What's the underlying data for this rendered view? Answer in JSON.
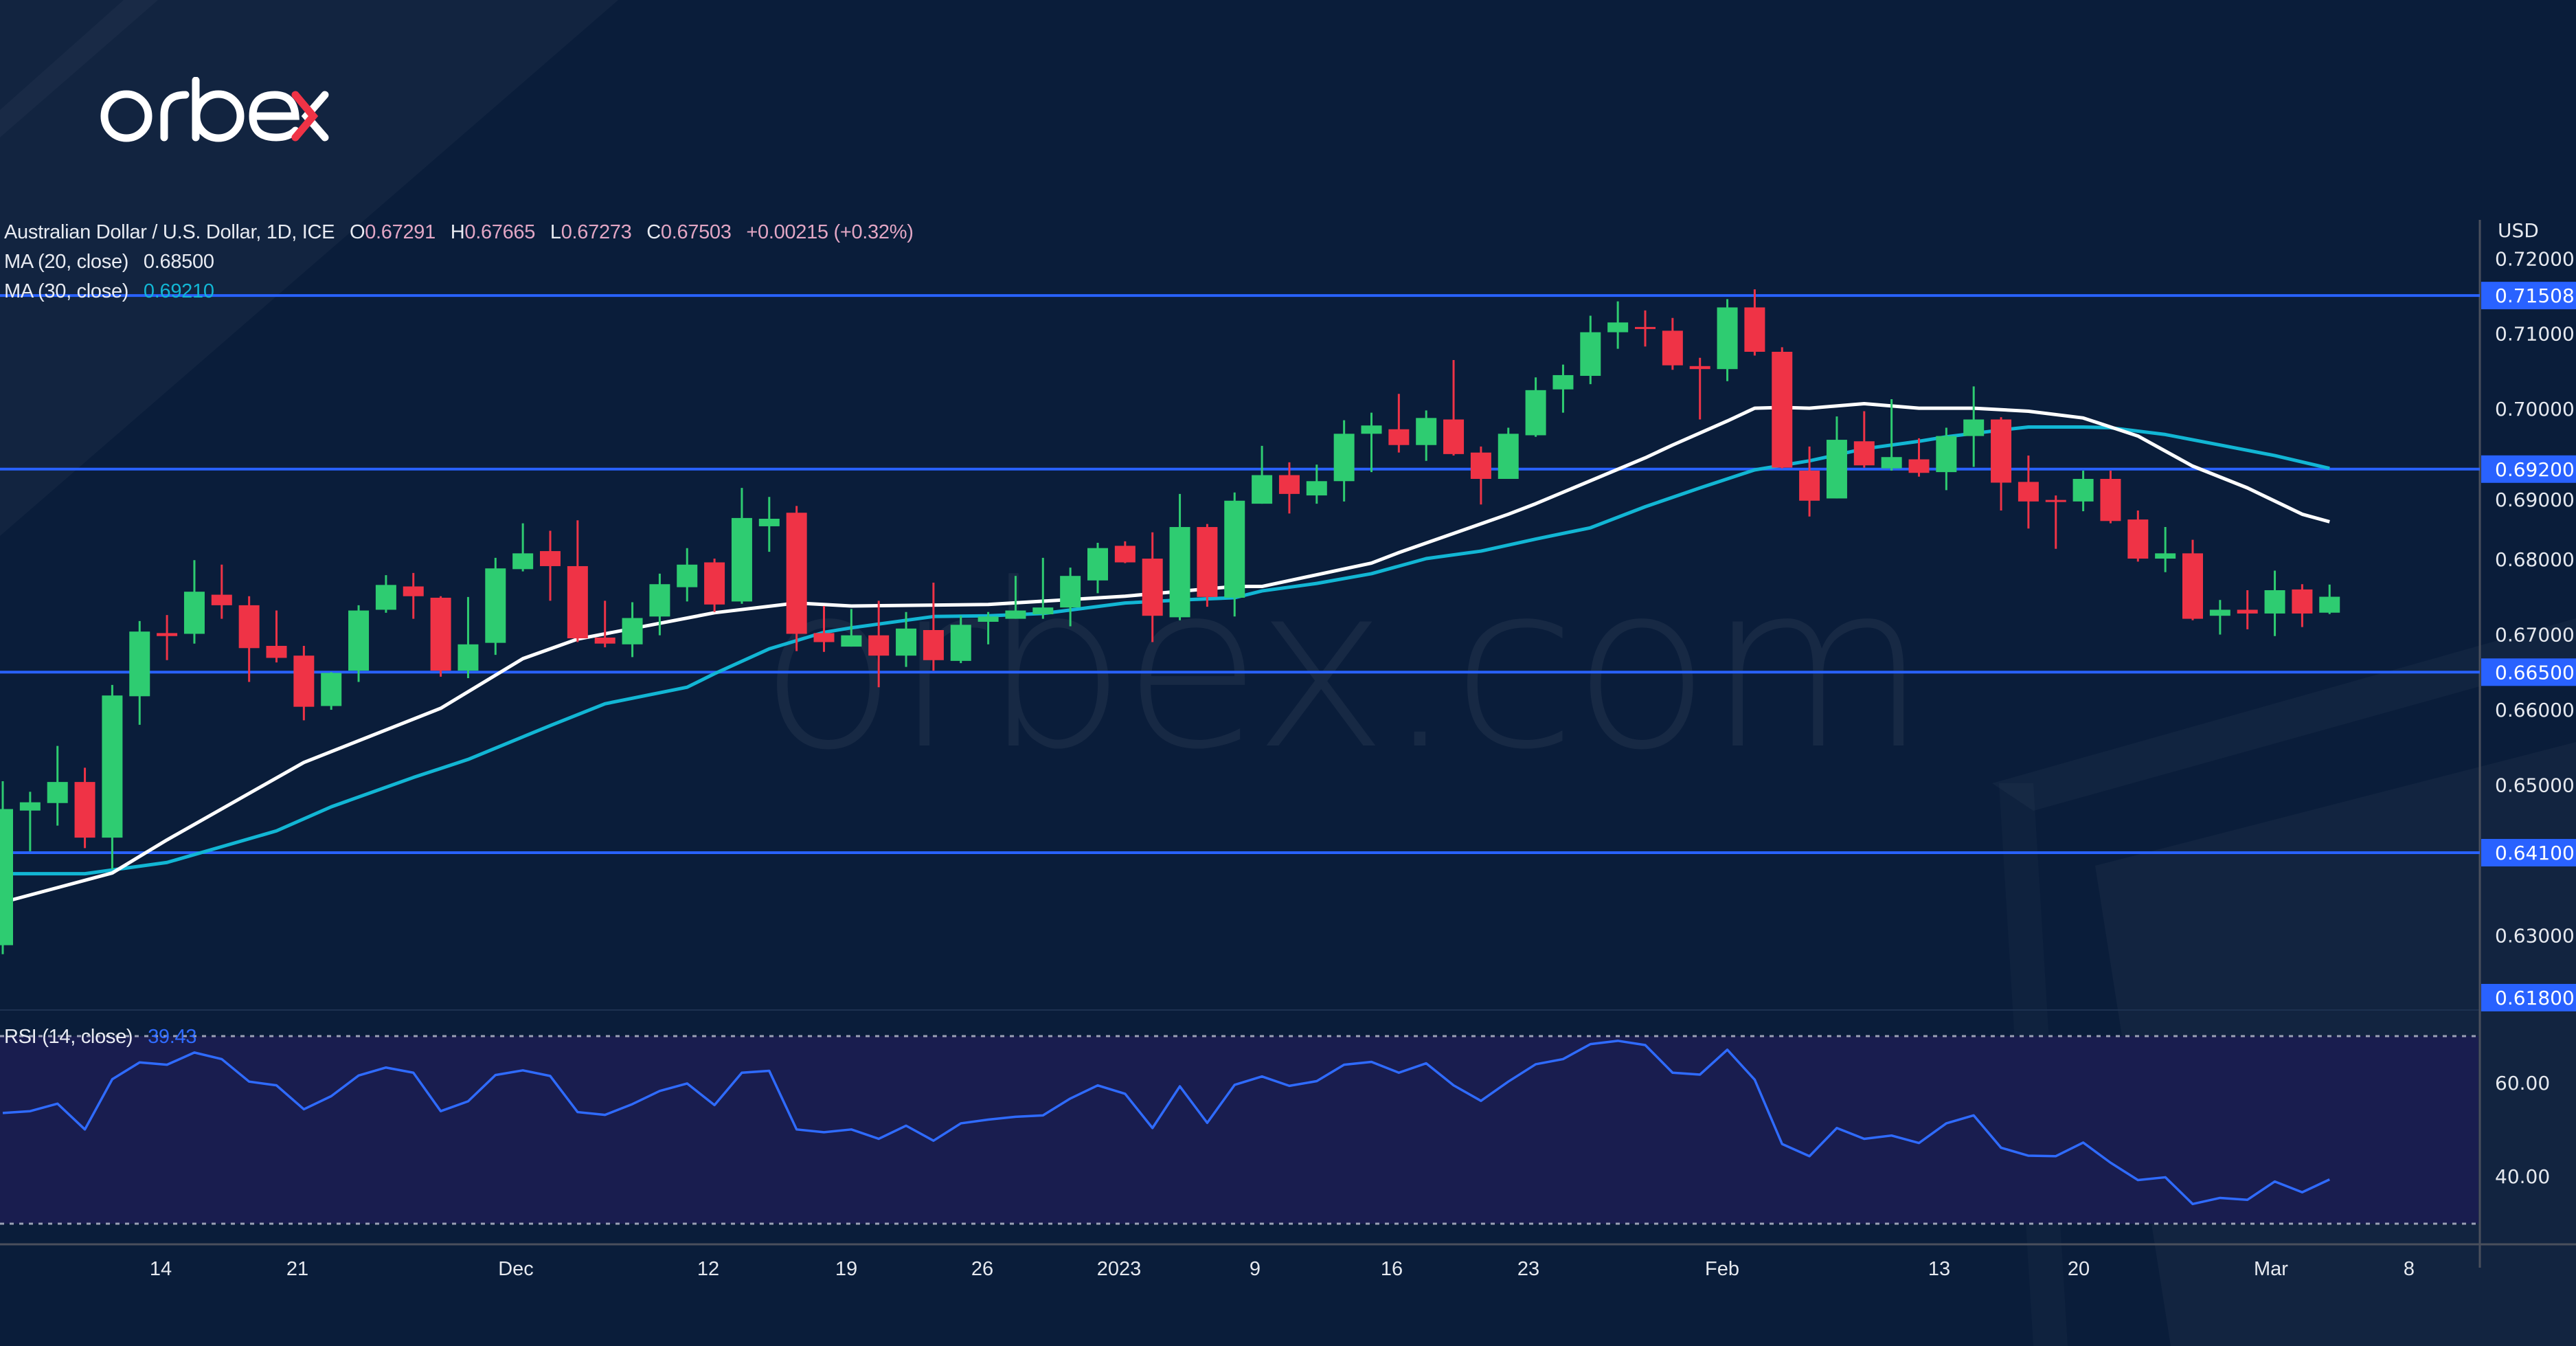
{
  "brand": {
    "logo_text": "orbex",
    "watermark": "orbex.com",
    "accent_x_color": "#ef3346"
  },
  "header": {
    "symbol": "Australian Dollar / U.S. Dollar, 1D, ICE",
    "o_label": "O",
    "o": "0.67291",
    "h_label": "H",
    "h": "0.67665",
    "l_label": "L",
    "l": "0.67273",
    "c_label": "C",
    "c": "0.67503",
    "change": "+0.00215 (+0.32%)"
  },
  "indicators": {
    "ma20": {
      "label": "MA (20, close)",
      "value": "0.68500",
      "color": "#ffffff"
    },
    "ma30": {
      "label": "MA (30, close)",
      "value": "0.69210",
      "color": "#12b6d4"
    },
    "rsi": {
      "label": "RSI (14, close)",
      "value": "39.43",
      "color": "#2f6bff"
    }
  },
  "colors": {
    "background": "#0a1d3a",
    "up": "#2ecc71",
    "down": "#ef3346",
    "level_line": "#2962ff",
    "rsi_band": "#191d4f"
  },
  "price_axis": {
    "currency": "USD",
    "ticks": [
      "0.72000",
      "0.71000",
      "0.70000",
      "0.69000",
      "0.68000",
      "0.67000",
      "0.66000",
      "0.65000",
      "0.63000"
    ],
    "levels": [
      {
        "value": 0.71508,
        "label": "0.71508"
      },
      {
        "value": 0.692,
        "label": "0.69200"
      },
      {
        "value": 0.665,
        "label": "0.66500"
      },
      {
        "value": 0.641,
        "label": "0.64100"
      },
      {
        "value": 0.618,
        "label": "0.61800"
      }
    ]
  },
  "rsi_axis": {
    "ticks": [
      "60.00",
      "40.00"
    ],
    "upper_band": 70,
    "lower_band": 30
  },
  "time_axis": {
    "labels": [
      "14",
      "21",
      "Dec",
      "12",
      "19",
      "26",
      "2023",
      "9",
      "16",
      "23",
      "Feb",
      "13",
      "20",
      "Mar",
      "8"
    ]
  },
  "chart_data": {
    "type": "candlestick",
    "title": "Australian Dollar / U.S. Dollar, 1D, ICE",
    "ylabel": "USD",
    "ylim": [
      0.618,
      0.721
    ],
    "candles_fields": [
      "date",
      "open",
      "high",
      "low",
      "close"
    ],
    "candles": [
      [
        "2022-11-04",
        0.6287,
        0.6505,
        0.6275,
        0.6468
      ],
      [
        "2022-11-07",
        0.6466,
        0.6491,
        0.6412,
        0.6477
      ],
      [
        "2022-11-08",
        0.6476,
        0.6552,
        0.6446,
        0.6504
      ],
      [
        "2022-11-09",
        0.6504,
        0.6523,
        0.6416,
        0.643
      ],
      [
        "2022-11-10",
        0.643,
        0.6633,
        0.6388,
        0.6619
      ],
      [
        "2022-11-11",
        0.6618,
        0.6718,
        0.658,
        0.6704
      ],
      [
        "2022-11-14",
        0.6702,
        0.6726,
        0.6666,
        0.6698
      ],
      [
        "2022-11-15",
        0.6701,
        0.6799,
        0.6688,
        0.6757
      ],
      [
        "2022-11-16",
        0.6753,
        0.6793,
        0.6721,
        0.6739
      ],
      [
        "2022-11-17",
        0.6739,
        0.6751,
        0.6637,
        0.6682
      ],
      [
        "2022-11-18",
        0.6685,
        0.6732,
        0.6663,
        0.6669
      ],
      [
        "2022-11-21",
        0.6672,
        0.6685,
        0.6586,
        0.6604
      ],
      [
        "2022-11-22",
        0.6605,
        0.665,
        0.66,
        0.6649
      ],
      [
        "2022-11-23",
        0.6652,
        0.6739,
        0.6637,
        0.6732
      ],
      [
        "2022-11-24",
        0.6733,
        0.6779,
        0.6729,
        0.6766
      ],
      [
        "2022-11-25",
        0.6764,
        0.6782,
        0.6721,
        0.6751
      ],
      [
        "2022-11-28",
        0.6749,
        0.6751,
        0.6644,
        0.6652
      ],
      [
        "2022-11-29",
        0.6652,
        0.675,
        0.6642,
        0.6687
      ],
      [
        "2022-11-30",
        0.6689,
        0.6802,
        0.6673,
        0.6788
      ],
      [
        "2022-12-01",
        0.6787,
        0.6848,
        0.6784,
        0.6808
      ],
      [
        "2022-12-02",
        0.6811,
        0.6838,
        0.6745,
        0.6791
      ],
      [
        "2022-12-05",
        0.6791,
        0.6852,
        0.669,
        0.6695
      ],
      [
        "2022-12-06",
        0.6696,
        0.6745,
        0.6683,
        0.6688
      ],
      [
        "2022-12-07",
        0.6687,
        0.6743,
        0.667,
        0.6722
      ],
      [
        "2022-12-08",
        0.6724,
        0.6781,
        0.6699,
        0.6767
      ],
      [
        "2022-12-09",
        0.6763,
        0.6815,
        0.6744,
        0.6793
      ],
      [
        "2022-12-12",
        0.6796,
        0.6801,
        0.673,
        0.674
      ],
      [
        "2022-12-13",
        0.6744,
        0.6895,
        0.6741,
        0.6855
      ],
      [
        "2022-12-14",
        0.6844,
        0.6883,
        0.681,
        0.6854
      ],
      [
        "2022-12-15",
        0.6862,
        0.6871,
        0.6678,
        0.6701
      ],
      [
        "2022-12-16",
        0.6702,
        0.6738,
        0.6677,
        0.669
      ],
      [
        "2022-12-19",
        0.6684,
        0.6734,
        0.6684,
        0.6699
      ],
      [
        "2022-12-20",
        0.6699,
        0.6745,
        0.663,
        0.6672
      ],
      [
        "2022-12-21",
        0.6672,
        0.673,
        0.6657,
        0.6708
      ],
      [
        "2022-12-22",
        0.6706,
        0.6769,
        0.6652,
        0.6666
      ],
      [
        "2022-12-23",
        0.6665,
        0.6725,
        0.6662,
        0.6713
      ],
      [
        "2022-12-26",
        0.6717,
        0.673,
        0.6687,
        0.6724
      ],
      [
        "2022-12-27",
        0.6721,
        0.6778,
        0.6721,
        0.6732
      ],
      [
        "2022-12-28",
        0.6727,
        0.6802,
        0.6721,
        0.6736
      ],
      [
        "2022-12-29",
        0.6736,
        0.6789,
        0.6711,
        0.6778
      ],
      [
        "2022-12-30",
        0.6772,
        0.6822,
        0.6755,
        0.6815
      ],
      [
        "2023-01-02",
        0.6818,
        0.6824,
        0.6795,
        0.6796
      ],
      [
        "2023-01-03",
        0.6801,
        0.6836,
        0.669,
        0.6725
      ],
      [
        "2023-01-04",
        0.6723,
        0.6887,
        0.6719,
        0.6843
      ],
      [
        "2023-01-05",
        0.6843,
        0.6847,
        0.6737,
        0.675
      ],
      [
        "2023-01-06",
        0.6749,
        0.6889,
        0.6724,
        0.6878
      ],
      [
        "2023-01-09",
        0.6874,
        0.6951,
        0.6874,
        0.6912
      ],
      [
        "2023-01-10",
        0.6912,
        0.6929,
        0.6861,
        0.6887
      ],
      [
        "2023-01-11",
        0.6885,
        0.6926,
        0.6874,
        0.6904
      ],
      [
        "2023-01-12",
        0.6904,
        0.6985,
        0.6877,
        0.6967
      ],
      [
        "2023-01-13",
        0.6967,
        0.6995,
        0.6916,
        0.6978
      ],
      [
        "2023-01-16",
        0.6973,
        0.702,
        0.6942,
        0.6952
      ],
      [
        "2023-01-17",
        0.6952,
        0.6998,
        0.6931,
        0.6988
      ],
      [
        "2023-01-18",
        0.6986,
        0.7065,
        0.6938,
        0.694
      ],
      [
        "2023-01-19",
        0.6942,
        0.695,
        0.6873,
        0.6907
      ],
      [
        "2023-01-20",
        0.6907,
        0.6975,
        0.6907,
        0.6967
      ],
      [
        "2023-01-23",
        0.6965,
        0.7042,
        0.6963,
        0.7025
      ],
      [
        "2023-01-24",
        0.7026,
        0.7059,
        0.6995,
        0.7045
      ],
      [
        "2023-01-25",
        0.7044,
        0.7124,
        0.7033,
        0.7102
      ],
      [
        "2023-01-26",
        0.7102,
        0.7143,
        0.708,
        0.7115
      ],
      [
        "2023-01-27",
        0.7109,
        0.7131,
        0.7083,
        0.7107
      ],
      [
        "2023-01-30",
        0.7104,
        0.7121,
        0.7052,
        0.7058
      ],
      [
        "2023-01-31",
        0.7057,
        0.7068,
        0.6986,
        0.7053
      ],
      [
        "2023-02-01",
        0.7053,
        0.7146,
        0.7037,
        0.7135
      ],
      [
        "2023-02-02",
        0.7135,
        0.7159,
        0.7071,
        0.7076
      ],
      [
        "2023-02-03",
        0.7076,
        0.7082,
        0.6921,
        0.6922
      ],
      [
        "2023-02-06",
        0.6918,
        0.695,
        0.6857,
        0.6878
      ],
      [
        "2023-02-07",
        0.6881,
        0.699,
        0.6881,
        0.6959
      ],
      [
        "2023-02-08",
        0.6957,
        0.6997,
        0.6922,
        0.6925
      ],
      [
        "2023-02-09",
        0.6921,
        0.7013,
        0.6918,
        0.6936
      ],
      [
        "2023-02-10",
        0.6933,
        0.6961,
        0.691,
        0.6915
      ],
      [
        "2023-02-13",
        0.6916,
        0.6975,
        0.6892,
        0.6964
      ],
      [
        "2023-02-14",
        0.6964,
        0.703,
        0.6923,
        0.6986
      ],
      [
        "2023-02-15",
        0.6986,
        0.6989,
        0.6865,
        0.6902
      ],
      [
        "2023-02-16",
        0.6903,
        0.6938,
        0.6841,
        0.6877
      ],
      [
        "2023-02-17",
        0.6879,
        0.6885,
        0.6814,
        0.6877
      ],
      [
        "2023-02-20",
        0.6877,
        0.6918,
        0.6864,
        0.6907
      ],
      [
        "2023-02-21",
        0.6907,
        0.6918,
        0.6848,
        0.6851
      ],
      [
        "2023-02-22",
        0.6853,
        0.6865,
        0.6797,
        0.6801
      ],
      [
        "2023-02-23",
        0.6801,
        0.6843,
        0.6783,
        0.6808
      ],
      [
        "2023-02-24",
        0.6808,
        0.6826,
        0.6719,
        0.6721
      ],
      [
        "2023-02-27",
        0.6725,
        0.6746,
        0.67,
        0.6733
      ],
      [
        "2023-02-28",
        0.6733,
        0.6759,
        0.6707,
        0.6728
      ],
      [
        "2023-03-01",
        0.6728,
        0.6785,
        0.6698,
        0.6759
      ],
      [
        "2023-03-02",
        0.676,
        0.6767,
        0.671,
        0.6728
      ],
      [
        "2023-03-03",
        0.67291,
        0.67665,
        0.67273,
        0.67503
      ]
    ],
    "ma20": [
      [
        "2022-11-04",
        0.6344
      ],
      [
        "2022-11-10",
        0.6383
      ],
      [
        "2022-11-14",
        0.6427
      ],
      [
        "2022-11-21",
        0.653
      ],
      [
        "2022-11-28",
        0.6602
      ],
      [
        "2022-12-01",
        0.6668
      ],
      [
        "2022-12-05",
        0.6694
      ],
      [
        "2022-12-12",
        0.6729
      ],
      [
        "2022-12-15",
        0.6742
      ],
      [
        "2022-12-19",
        0.6738
      ],
      [
        "2022-12-26",
        0.674
      ],
      [
        "2023-01-02",
        0.6751
      ],
      [
        "2023-01-06",
        0.6764
      ],
      [
        "2023-01-09",
        0.6764
      ],
      [
        "2023-01-13",
        0.6795
      ],
      [
        "2023-01-16",
        0.6809
      ],
      [
        "2023-01-20",
        0.686
      ],
      [
        "2023-01-23",
        0.6874
      ],
      [
        "2023-01-27",
        0.6935
      ],
      [
        "2023-01-30",
        0.6952
      ],
      [
        "2023-02-01",
        0.6984
      ],
      [
        "2023-02-02",
        0.7001
      ],
      [
        "2023-02-03",
        0.7002
      ],
      [
        "2023-02-06",
        0.7001
      ],
      [
        "2023-02-08",
        0.7007
      ],
      [
        "2023-02-10",
        0.7001
      ],
      [
        "2023-02-14",
        0.7001
      ],
      [
        "2023-02-16",
        0.6997
      ],
      [
        "2023-02-20",
        0.6988
      ],
      [
        "2023-02-22",
        0.6964
      ],
      [
        "2023-02-24",
        0.6924
      ],
      [
        "2023-02-28",
        0.6895
      ],
      [
        "2023-03-02",
        0.686
      ],
      [
        "2023-03-03",
        0.685
      ]
    ],
    "ma30": [
      [
        "2022-11-04",
        0.6382
      ],
      [
        "2022-11-09",
        0.6382
      ],
      [
        "2022-11-14",
        0.6397
      ],
      [
        "2022-11-18",
        0.6439
      ],
      [
        "2022-11-22",
        0.6471
      ],
      [
        "2022-11-25",
        0.651
      ],
      [
        "2022-11-29",
        0.6534
      ],
      [
        "2022-12-02",
        0.6579
      ],
      [
        "2022-12-06",
        0.6608
      ],
      [
        "2022-12-09",
        0.663
      ],
      [
        "2022-12-12",
        0.6648
      ],
      [
        "2022-12-14",
        0.6681
      ],
      [
        "2022-12-16",
        0.6703
      ],
      [
        "2022-12-19",
        0.6709
      ],
      [
        "2022-12-22",
        0.6724
      ],
      [
        "2022-12-26",
        0.6725
      ],
      [
        "2022-12-28",
        0.6728
      ],
      [
        "2023-01-02",
        0.6742
      ],
      [
        "2023-01-04",
        0.6746
      ],
      [
        "2023-01-06",
        0.6749
      ],
      [
        "2023-01-09",
        0.6758
      ],
      [
        "2023-01-11",
        0.6768
      ],
      [
        "2023-01-13",
        0.6781
      ],
      [
        "2023-01-17",
        0.6801
      ],
      [
        "2023-01-19",
        0.6811
      ],
      [
        "2023-01-23",
        0.6827
      ],
      [
        "2023-01-25",
        0.6842
      ],
      [
        "2023-01-27",
        0.687
      ],
      [
        "2023-01-31",
        0.6895
      ],
      [
        "2023-02-02",
        0.6919
      ],
      [
        "2023-02-06",
        0.6931
      ],
      [
        "2023-02-08",
        0.6947
      ],
      [
        "2023-02-10",
        0.6957
      ],
      [
        "2023-02-13",
        0.6963
      ],
      [
        "2023-02-15",
        0.6972
      ],
      [
        "2023-02-16",
        0.6976
      ],
      [
        "2023-02-20",
        0.6976
      ],
      [
        "2023-02-21",
        0.6975
      ],
      [
        "2023-02-23",
        0.6966
      ],
      [
        "2023-02-27",
        0.6952
      ],
      [
        "2023-03-01",
        0.6938
      ],
      [
        "2023-03-03",
        0.6921
      ]
    ],
    "rsi": [
      53.6,
      54.0,
      55.6,
      50.1,
      60.8,
      64.4,
      63.9,
      66.5,
      65.1,
      60.3,
      59.5,
      54.4,
      57.2,
      61.6,
      63.3,
      62.2,
      54.0,
      56.1,
      61.7,
      62.7,
      61.5,
      53.8,
      53.2,
      55.5,
      58.3,
      59.9,
      55.3,
      62.2,
      62.6,
      50.1,
      49.5,
      50.1,
      48.1,
      50.9,
      47.7,
      51.4,
      52.2,
      52.8,
      53.1,
      56.7,
      59.5,
      57.7,
      50.4,
      59.3,
      51.5,
      59.6,
      61.4,
      59.4,
      60.4,
      63.9,
      64.5,
      62.2,
      64.2,
      59.5,
      56.2,
      60.3,
      64.0,
      65.1,
      68.3,
      69.0,
      68.1,
      62.2,
      61.8,
      67.1,
      60.7,
      47.0,
      44.4,
      50.4,
      48.1,
      48.8,
      47.2,
      51.4,
      53.1,
      46.2,
      44.5,
      44.4,
      47.3,
      43.0,
      39.3,
      39.9,
      34.2,
      35.5,
      35.1,
      39.0,
      36.7,
      39.43
    ],
    "grid": false
  }
}
